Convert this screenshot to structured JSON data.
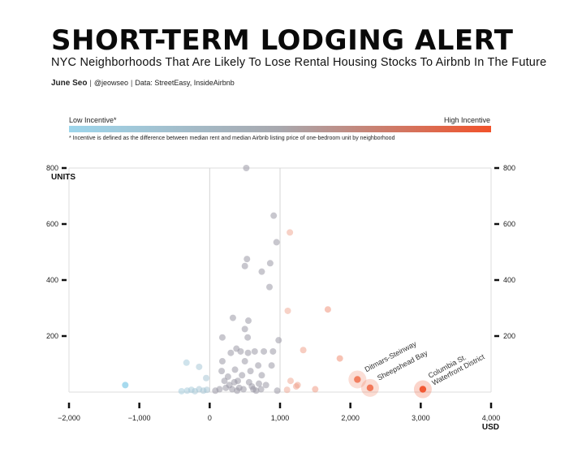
{
  "header": {
    "title": "SHORT-TERM LODGING ALERT",
    "subtitle": "NYC Neighborhoods That Are Likely To Lose Rental Housing Stocks To Airbnb In The Future",
    "author": "June Seo",
    "handle": "@jeowseo",
    "source": "Data: StreetEasy, InsideAirbnb"
  },
  "legend": {
    "low_label": "Low Incentive*",
    "high_label": "High Incentive",
    "low_color": "#9dd6ec",
    "high_color": "#f1522a",
    "footnote": "* Incentive is defined as the difference between median rent and median Airbnb listing price of one-bedroom unit by neighborhood"
  },
  "chart_data": {
    "type": "scatter",
    "title": "SHORT-TERM LODGING ALERT",
    "xlabel": "USD",
    "ylabel": "UNITS",
    "xlim": [
      -2000,
      4000
    ],
    "ylim": [
      0,
      800
    ],
    "x_ticks": [
      -2000,
      -1000,
      0,
      1000,
      2000,
      3000,
      4000
    ],
    "x_tick_labels": [
      "−2,000",
      "−1,000",
      "0",
      "1,000",
      "2,000",
      "3,000",
      "4,000"
    ],
    "y_ticks": [
      200,
      400,
      600,
      800
    ],
    "y_tick_labels": [
      "200",
      "400",
      "600",
      "800"
    ],
    "reference_lines_x": [
      0,
      1000
    ],
    "grid": false,
    "points": [
      {
        "x": -1200,
        "y": 25
      },
      {
        "x": -330,
        "y": 105
      },
      {
        "x": -150,
        "y": 90
      },
      {
        "x": -50,
        "y": 50
      },
      {
        "x": -400,
        "y": 3
      },
      {
        "x": -320,
        "y": 5
      },
      {
        "x": -260,
        "y": 8
      },
      {
        "x": -210,
        "y": 3
      },
      {
        "x": -150,
        "y": 10
      },
      {
        "x": -90,
        "y": 5
      },
      {
        "x": -40,
        "y": 8
      },
      {
        "x": 80,
        "y": 5
      },
      {
        "x": 140,
        "y": 10
      },
      {
        "x": 170,
        "y": 75
      },
      {
        "x": 180,
        "y": 110
      },
      {
        "x": 180,
        "y": 195
      },
      {
        "x": 210,
        "y": 40
      },
      {
        "x": 230,
        "y": 15
      },
      {
        "x": 260,
        "y": 55
      },
      {
        "x": 280,
        "y": 25
      },
      {
        "x": 300,
        "y": 140
      },
      {
        "x": 320,
        "y": 10
      },
      {
        "x": 350,
        "y": 35
      },
      {
        "x": 360,
        "y": 80
      },
      {
        "x": 330,
        "y": 265
      },
      {
        "x": 380,
        "y": 155
      },
      {
        "x": 390,
        "y": 5
      },
      {
        "x": 400,
        "y": 40
      },
      {
        "x": 420,
        "y": 15
      },
      {
        "x": 440,
        "y": 145
      },
      {
        "x": 460,
        "y": 60
      },
      {
        "x": 480,
        "y": 10
      },
      {
        "x": 500,
        "y": 110
      },
      {
        "x": 500,
        "y": 225
      },
      {
        "x": 500,
        "y": 450
      },
      {
        "x": 520,
        "y": 800
      },
      {
        "x": 530,
        "y": 475
      },
      {
        "x": 540,
        "y": 195
      },
      {
        "x": 545,
        "y": 140
      },
      {
        "x": 550,
        "y": 255
      },
      {
        "x": 560,
        "y": 35
      },
      {
        "x": 580,
        "y": 75
      },
      {
        "x": 600,
        "y": 20
      },
      {
        "x": 620,
        "y": 10
      },
      {
        "x": 640,
        "y": 145
      },
      {
        "x": 660,
        "y": 5
      },
      {
        "x": 690,
        "y": 95
      },
      {
        "x": 700,
        "y": 30
      },
      {
        "x": 730,
        "y": 10
      },
      {
        "x": 740,
        "y": 60
      },
      {
        "x": 740,
        "y": 430
      },
      {
        "x": 770,
        "y": 145
      },
      {
        "x": 800,
        "y": 25
      },
      {
        "x": 850,
        "y": 375
      },
      {
        "x": 860,
        "y": 460
      },
      {
        "x": 880,
        "y": 95
      },
      {
        "x": 900,
        "y": 145
      },
      {
        "x": 910,
        "y": 630
      },
      {
        "x": 950,
        "y": 535
      },
      {
        "x": 960,
        "y": 5
      },
      {
        "x": 980,
        "y": 185
      },
      {
        "x": 1100,
        "y": 8
      },
      {
        "x": 1110,
        "y": 290
      },
      {
        "x": 1140,
        "y": 570
      },
      {
        "x": 1150,
        "y": 40
      },
      {
        "x": 1230,
        "y": 20
      },
      {
        "x": 1250,
        "y": 25
      },
      {
        "x": 1330,
        "y": 150
      },
      {
        "x": 1500,
        "y": 10
      },
      {
        "x": 1680,
        "y": 295
      },
      {
        "x": 1850,
        "y": 120
      },
      {
        "x": 2100,
        "y": 45,
        "label": "Ditmars-Steinway"
      },
      {
        "x": 2280,
        "y": 15,
        "label": "Sheepshead Bay"
      },
      {
        "x": 3030,
        "y": 10,
        "label": "Columbia St. Waterfront District"
      }
    ]
  }
}
